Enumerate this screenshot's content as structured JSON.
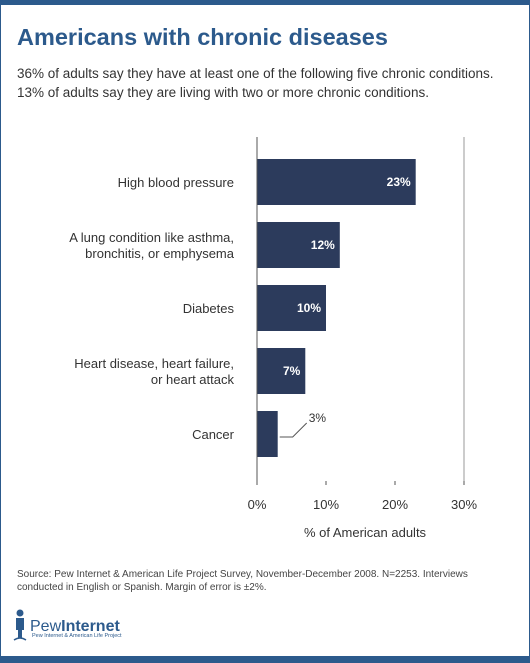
{
  "header": {
    "title": "Americans with chronic diseases",
    "subtitle_line1": "36% of adults say they have at least one of the following five chronic conditions.",
    "subtitle_line2": "13% of adults say they are living with two or more chronic conditions."
  },
  "chart_data": {
    "type": "bar",
    "orientation": "horizontal",
    "categories": [
      [
        "High blood pressure"
      ],
      [
        "A lung condition like asthma,",
        "bronchitis, or emphysema"
      ],
      [
        "Diabetes"
      ],
      [
        "Heart disease, heart failure,",
        "or heart attack"
      ],
      [
        "Cancer"
      ]
    ],
    "values": [
      23,
      12,
      10,
      7,
      3
    ],
    "value_labels": [
      "23%",
      "12%",
      "10%",
      "7%",
      "3%"
    ],
    "xlabel": "% of American adults",
    "xlim": [
      0,
      30
    ],
    "xticks": [
      "0%",
      "10%",
      "20%",
      "30%"
    ],
    "grid": false,
    "bar_color": "#2c3b5c"
  },
  "footer": {
    "source": "Source: Pew Internet & American Life Project Survey, November-December 2008. N=2253. Interviews conducted in English or Spanish.  Margin of error is ±2%.",
    "logo_pew": "Pew",
    "logo_internet": "Internet",
    "logo_tagline": "Pew Internet & American Life Project"
  },
  "colors": {
    "accent": "#2c5a8c",
    "bar": "#2c3b5c"
  }
}
